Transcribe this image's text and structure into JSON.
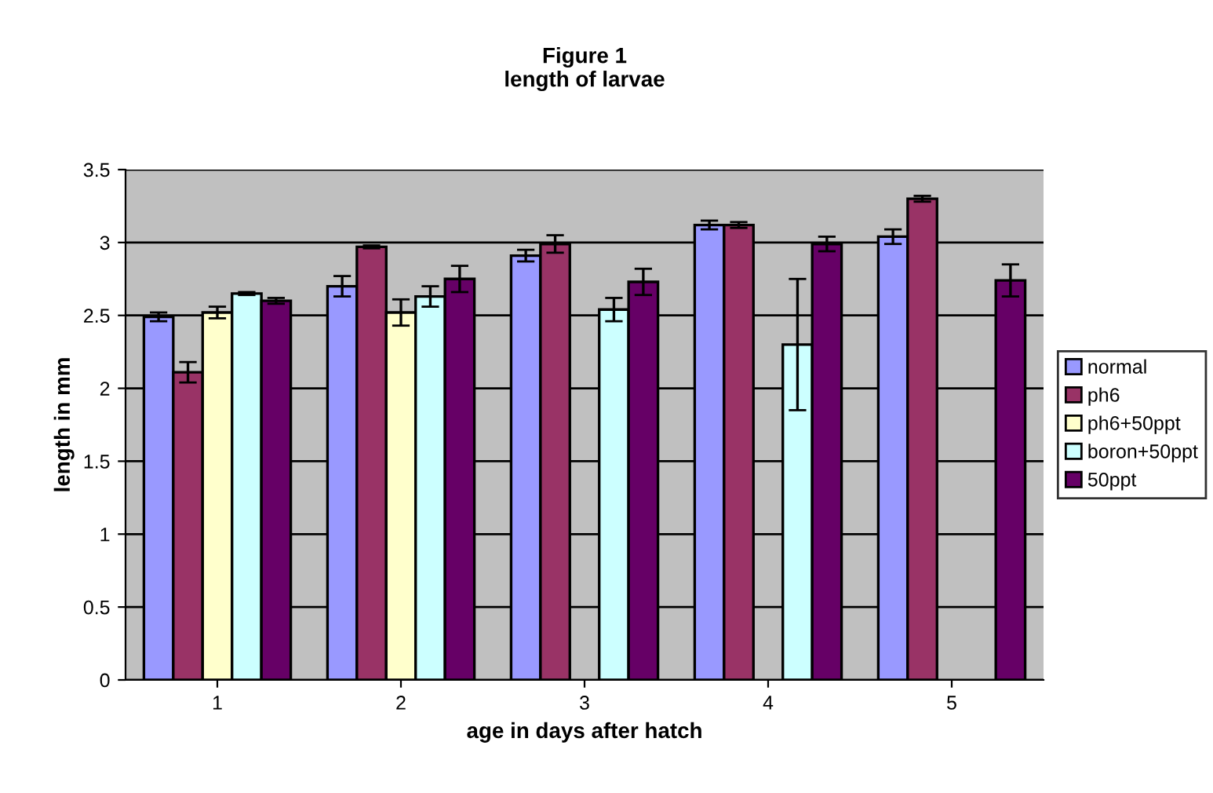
{
  "chart_data": {
    "type": "bar",
    "title": "Figure 1\nlength of larvae",
    "xlabel": "age in days after hatch",
    "ylabel": "length in mm",
    "categories": [
      "1",
      "2",
      "3",
      "4",
      "5"
    ],
    "series": [
      {
        "name": "normal",
        "color": "#9999ff",
        "values": [
          2.49,
          2.7,
          2.91,
          3.12,
          3.04
        ],
        "errors": [
          0.03,
          0.07,
          0.04,
          0.03,
          0.05
        ]
      },
      {
        "name": "ph6",
        "color": "#993366",
        "values": [
          2.11,
          2.97,
          2.99,
          3.12,
          3.3
        ],
        "errors": [
          0.07,
          0.01,
          0.06,
          0.02,
          0.02
        ]
      },
      {
        "name": "ph6+50ppt",
        "color": "#ffffcc",
        "values": [
          2.52,
          2.52,
          null,
          null,
          null
        ],
        "errors": [
          0.04,
          0.09,
          null,
          null,
          null
        ]
      },
      {
        "name": "boron+50ppt",
        "color": "#ccffff",
        "values": [
          2.65,
          2.63,
          2.54,
          2.3,
          null
        ],
        "errors": [
          0.01,
          0.07,
          0.08,
          0.45,
          null
        ]
      },
      {
        "name": "50ppt",
        "color": "#660066",
        "values": [
          2.6,
          2.75,
          2.73,
          2.99,
          2.74
        ],
        "errors": [
          0.02,
          0.09,
          0.09,
          0.05,
          0.11
        ]
      }
    ],
    "ylim": [
      0,
      3.5
    ],
    "yticks": [
      0,
      0.5,
      1,
      1.5,
      2,
      2.5,
      3,
      3.5
    ],
    "grid": "y",
    "legend": "right"
  }
}
